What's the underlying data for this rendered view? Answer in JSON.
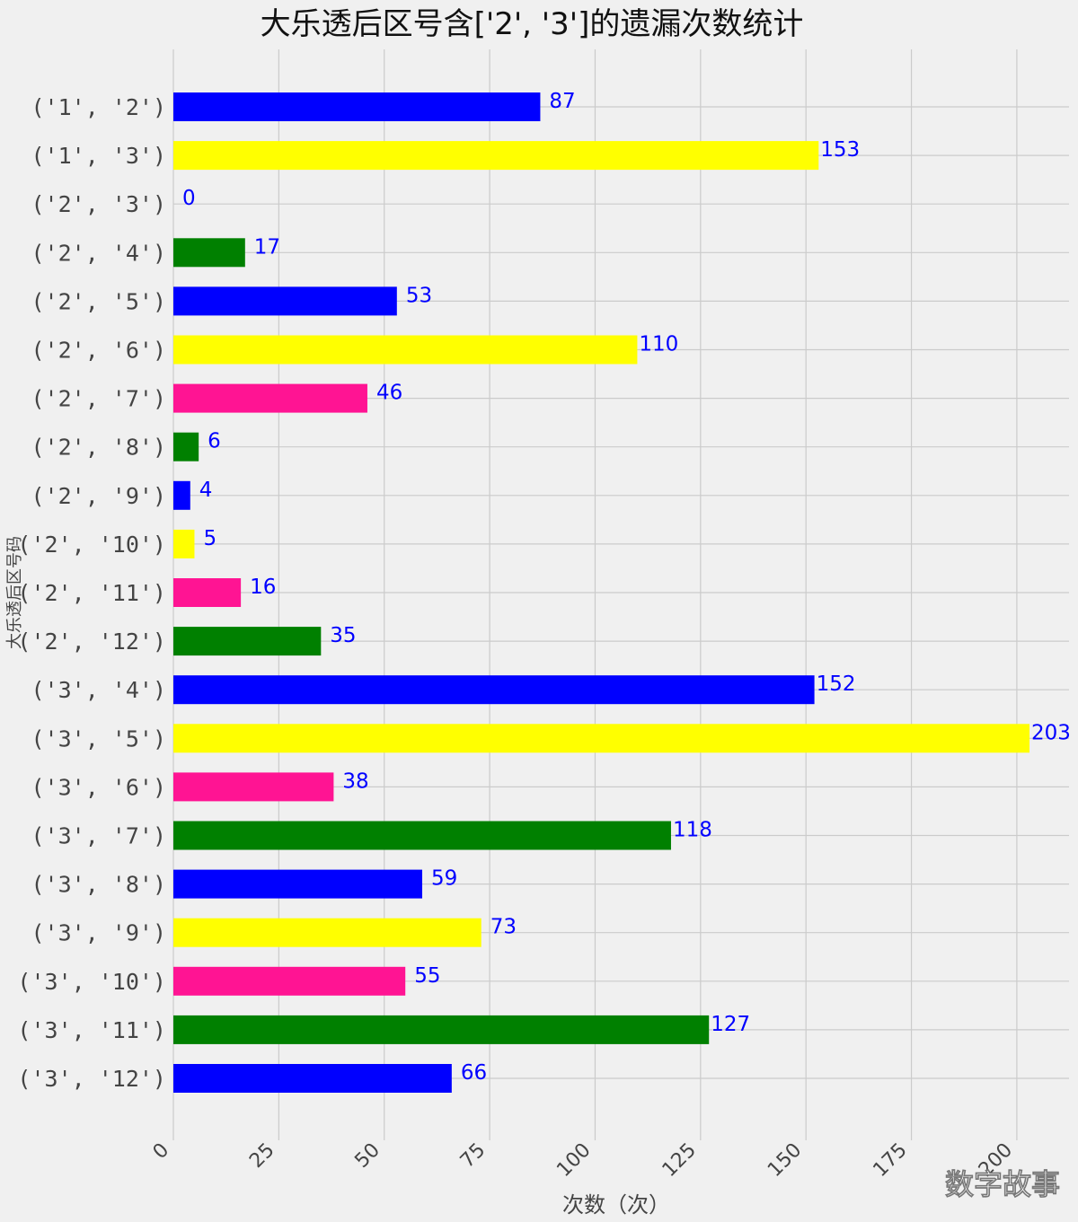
{
  "chart_data": {
    "type": "bar",
    "orientation": "horizontal",
    "title": "大乐透后区号含['2', '3']的遗漏次数统计",
    "xlabel": "次数（次）",
    "ylabel": "大乐透后区号码",
    "xlim": [
      0,
      225
    ],
    "xticks": [
      0,
      25,
      50,
      75,
      100,
      125,
      150,
      175,
      200
    ],
    "xtick_labels": [
      "0",
      "25",
      "50",
      "75",
      "100",
      "125",
      "150",
      "175",
      "200"
    ],
    "grid": true,
    "categories": [
      "('1', '2')",
      "('1', '3')",
      "('2', '3')",
      "('2', '4')",
      "('2', '5')",
      "('2', '6')",
      "('2', '7')",
      "('2', '8')",
      "('2', '9')",
      "('2', '10')",
      "('2', '11')",
      "('2', '12')",
      "('3', '4')",
      "('3', '5')",
      "('3', '6')",
      "('3', '7')",
      "('3', '8')",
      "('3', '9')",
      "('3', '10')",
      "('3', '11')",
      "('3', '12')"
    ],
    "values": [
      87,
      153,
      0,
      17,
      53,
      110,
      46,
      6,
      4,
      5,
      16,
      35,
      152,
      203,
      38,
      118,
      59,
      73,
      55,
      127,
      66
    ],
    "bar_colors": [
      "#0000ff",
      "#ffff00",
      "#ff1493",
      "#008000"
    ],
    "label_color": "#0000ff"
  },
  "watermark": "数字故事"
}
